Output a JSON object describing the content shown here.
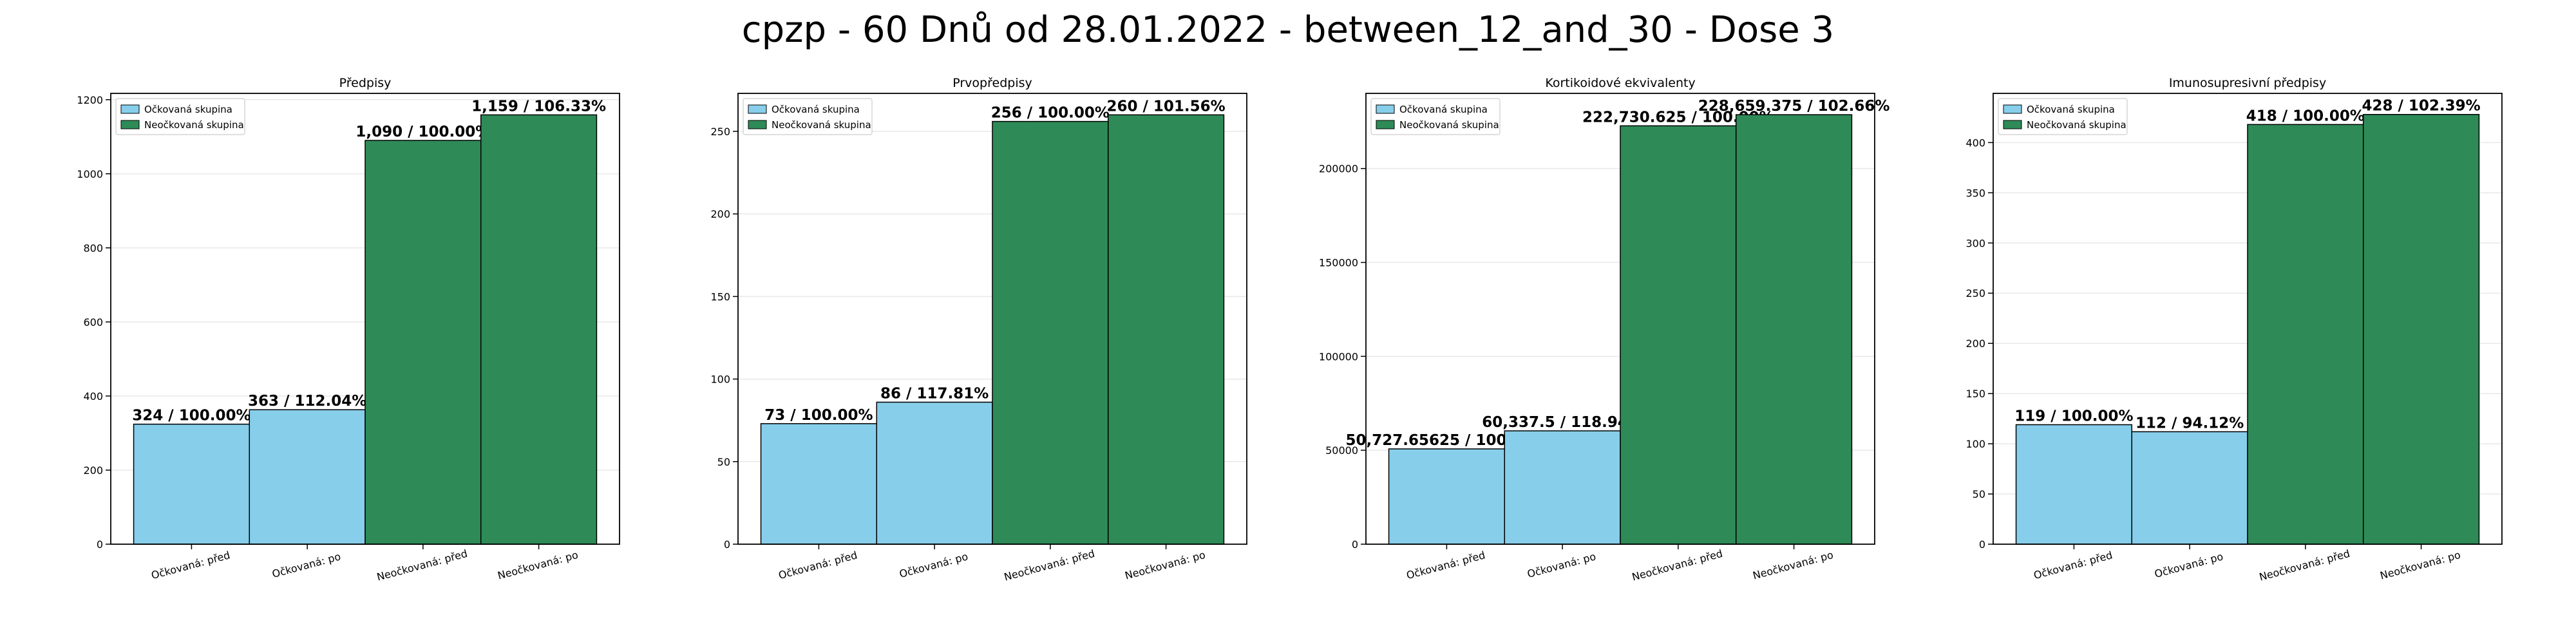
{
  "title": "cpzp - 60 Dnů od 28.01.2022 - between_12_and_30 - Dose 3",
  "colors": {
    "vaccinated": "#87ceeb",
    "unvaccinated": "#2e8b57",
    "grid": "#e8e8e8",
    "edge": "#000000"
  },
  "chart_data": [
    {
      "type": "bar",
      "title": "Předpisy",
      "categories": [
        "Očkovaná: před",
        "Očkovaná: po",
        "Neočkovaná: před",
        "Neočkovaná: po"
      ],
      "values": [
        324,
        363,
        1090,
        1159
      ],
      "data_labels": [
        "324 / 100.00%",
        "363 / 112.04%",
        "1,090 / 100.00%",
        "1,159 / 106.33%"
      ],
      "series_of_bar": [
        "Očkovaná skupina",
        "Očkovaná skupina",
        "Neočkovaná skupina",
        "Neočkovaná skupina"
      ],
      "legend": [
        "Očkovaná skupina",
        "Neočkovaná skupina"
      ],
      "legend_placement": "top-left",
      "ylim": [
        0,
        1217
      ],
      "yticks": [
        0,
        200,
        400,
        600,
        800,
        1000,
        1200
      ],
      "ytick_labels": [
        "0",
        "200",
        "400",
        "600",
        "800",
        "1000",
        "1200"
      ],
      "grid": true
    },
    {
      "type": "bar",
      "title": "Prvopředpisy",
      "categories": [
        "Očkovaná: před",
        "Očkovaná: po",
        "Neočkovaná: před",
        "Neočkovaná: po"
      ],
      "values": [
        73,
        86,
        256,
        260
      ],
      "data_labels": [
        "73 / 100.00%",
        "86 / 117.81%",
        "256 / 100.00%",
        "260 / 101.56%"
      ],
      "series_of_bar": [
        "Očkovaná skupina",
        "Očkovaná skupina",
        "Neočkovaná skupina",
        "Neočkovaná skupina"
      ],
      "legend": [
        "Očkovaná skupina",
        "Neočkovaná skupina"
      ],
      "legend_placement": "top-left",
      "ylim": [
        0,
        273
      ],
      "yticks": [
        0,
        50,
        100,
        150,
        200,
        250
      ],
      "ytick_labels": [
        "0",
        "50",
        "100",
        "150",
        "200",
        "250"
      ],
      "grid": true
    },
    {
      "type": "bar",
      "title": "Kortikoidové ekvivalenty",
      "categories": [
        "Očkovaná: před",
        "Očkovaná: po",
        "Neočkovaná: před",
        "Neočkovaná: po"
      ],
      "values": [
        50727.65625,
        60337.5,
        222730.625,
        228659.375
      ],
      "data_labels": [
        "50,727.65625 / 100.00%",
        "60,337.5 / 118.94%",
        "222,730.625 / 100.00%",
        "228,659.375 / 102.66%"
      ],
      "series_of_bar": [
        "Očkovaná skupina",
        "Očkovaná skupina",
        "Neočkovaná skupina",
        "Neočkovaná skupina"
      ],
      "legend": [
        "Očkovaná skupina",
        "Neočkovaná skupina"
      ],
      "legend_placement": "top-left",
      "ylim": [
        0,
        240000
      ],
      "yticks": [
        0,
        50000,
        100000,
        150000,
        200000
      ],
      "ytick_labels": [
        "0",
        "50000",
        "100000",
        "150000",
        "200000"
      ],
      "grid": true
    },
    {
      "type": "bar",
      "title": "Imunosupresivní předpisy",
      "categories": [
        "Očkovaná: před",
        "Očkovaná: po",
        "Neočkovaná: před",
        "Neočkovaná: po"
      ],
      "values": [
        119,
        112,
        418,
        428
      ],
      "data_labels": [
        "119 / 100.00%",
        "112 / 94.12%",
        "418 / 100.00%",
        "428 / 102.39%"
      ],
      "series_of_bar": [
        "Očkovaná skupina",
        "Očkovaná skupina",
        "Neočkovaná skupina",
        "Neočkovaná skupina"
      ],
      "legend": [
        "Očkovaná skupina",
        "Neočkovaná skupina"
      ],
      "legend_placement": "top-left",
      "ylim": [
        0,
        449
      ],
      "yticks": [
        0,
        50,
        100,
        150,
        200,
        250,
        300,
        350,
        400
      ],
      "ytick_labels": [
        "0",
        "50",
        "100",
        "150",
        "200",
        "250",
        "300",
        "350",
        "400"
      ],
      "grid": true
    }
  ]
}
